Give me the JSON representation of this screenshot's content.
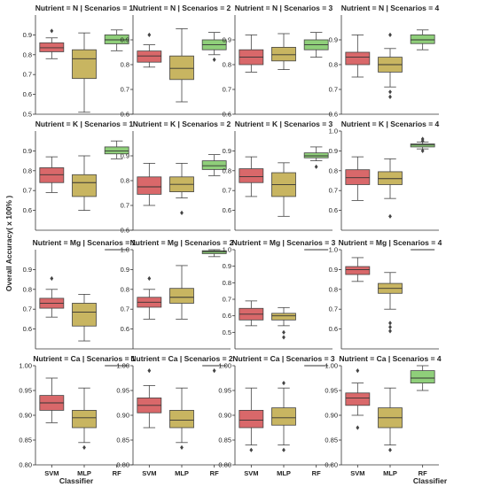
{
  "chart_data": {
    "type": "boxplot",
    "xlabel": "Classifier",
    "ylabel": "Overall Accuracy( x 100% )",
    "categories": [
      "SVM",
      "MLP",
      "RF"
    ],
    "colors": {
      "SVM": "#d9686a",
      "MLP": "#c8b561",
      "RF": "#8fcf7a"
    },
    "panels": [
      {
        "title": "Nutrient = N | Scenarios = 1",
        "ylim": [
          0.5,
          1.0
        ],
        "yticks": [
          0.5,
          0.6,
          0.7,
          0.8,
          0.9
        ],
        "boxes": [
          {
            "min": 0.78,
            "q1": 0.815,
            "median": 0.835,
            "q3": 0.86,
            "max": 0.885,
            "outliers": [
              0.92
            ]
          },
          {
            "min": 0.51,
            "q1": 0.68,
            "median": 0.78,
            "q3": 0.825,
            "max": 0.91,
            "outliers": []
          },
          {
            "min": 0.82,
            "q1": 0.855,
            "median": 0.875,
            "q3": 0.9,
            "max": 0.925,
            "outliers": []
          }
        ]
      },
      {
        "title": "Nutrient = N | Scenarios = 2",
        "ylim": [
          0.6,
          1.0
        ],
        "yticks": [
          0.6,
          0.7,
          0.8,
          0.9
        ],
        "boxes": [
          {
            "min": 0.79,
            "q1": 0.81,
            "median": 0.835,
            "q3": 0.855,
            "max": 0.88,
            "outliers": [
              0.92
            ]
          },
          {
            "min": 0.65,
            "q1": 0.74,
            "median": 0.785,
            "q3": 0.835,
            "max": 0.945,
            "outliers": []
          },
          {
            "min": 0.84,
            "q1": 0.86,
            "median": 0.88,
            "q3": 0.9,
            "max": 0.93,
            "outliers": [
              0.82
            ]
          }
        ]
      },
      {
        "title": "Nutrient = N | Scenarios = 3",
        "ylim": [
          0.6,
          1.0
        ],
        "yticks": [
          0.6,
          0.7,
          0.8,
          0.9
        ],
        "boxes": [
          {
            "min": 0.77,
            "q1": 0.8,
            "median": 0.83,
            "q3": 0.86,
            "max": 0.92,
            "outliers": []
          },
          {
            "min": 0.78,
            "q1": 0.815,
            "median": 0.84,
            "q3": 0.87,
            "max": 0.925,
            "outliers": []
          },
          {
            "min": 0.83,
            "q1": 0.86,
            "median": 0.88,
            "q3": 0.9,
            "max": 0.93,
            "outliers": []
          }
        ]
      },
      {
        "title": "Nutrient = N | Scenarios = 4",
        "ylim": [
          0.6,
          1.0
        ],
        "yticks": [
          0.6,
          0.7,
          0.8,
          0.9
        ],
        "boxes": [
          {
            "min": 0.75,
            "q1": 0.8,
            "median": 0.83,
            "q3": 0.85,
            "max": 0.92,
            "outliers": []
          },
          {
            "min": 0.71,
            "q1": 0.77,
            "median": 0.8,
            "q3": 0.83,
            "max": 0.865,
            "outliers": [
              0.92,
              0.69,
              0.67
            ]
          },
          {
            "min": 0.86,
            "q1": 0.885,
            "median": 0.9,
            "q3": 0.92,
            "max": 0.94,
            "outliers": []
          }
        ]
      },
      {
        "title": "Nutrient = K | Scenarios = 1",
        "ylim": [
          0.5,
          1.0
        ],
        "yticks": [
          0.6,
          0.7,
          0.8,
          0.9
        ],
        "boxes": [
          {
            "min": 0.69,
            "q1": 0.74,
            "median": 0.78,
            "q3": 0.815,
            "max": 0.87,
            "outliers": []
          },
          {
            "min": 0.6,
            "q1": 0.67,
            "median": 0.74,
            "q3": 0.78,
            "max": 0.875,
            "outliers": []
          },
          {
            "min": 0.86,
            "q1": 0.885,
            "median": 0.9,
            "q3": 0.92,
            "max": 0.95,
            "outliers": []
          }
        ]
      },
      {
        "title": "Nutrient = K | Scenarios = 2",
        "ylim": [
          0.6,
          1.0
        ],
        "yticks": [
          0.6,
          0.7,
          0.8,
          0.9
        ],
        "boxes": [
          {
            "min": 0.7,
            "q1": 0.745,
            "median": 0.775,
            "q3": 0.815,
            "max": 0.87,
            "outliers": []
          },
          {
            "min": 0.73,
            "q1": 0.755,
            "median": 0.785,
            "q3": 0.815,
            "max": 0.87,
            "outliers": [
              0.67
            ]
          },
          {
            "min": 0.82,
            "q1": 0.845,
            "median": 0.86,
            "q3": 0.88,
            "max": 0.905,
            "outliers": []
          }
        ]
      },
      {
        "title": "Nutrient = K | Scenarios = 3",
        "ylim": [
          0.5,
          1.0
        ],
        "yticks": [
          0.6,
          0.7,
          0.8,
          0.9
        ],
        "boxes": [
          {
            "min": 0.67,
            "q1": 0.74,
            "median": 0.77,
            "q3": 0.81,
            "max": 0.87,
            "outliers": []
          },
          {
            "min": 0.57,
            "q1": 0.67,
            "median": 0.73,
            "q3": 0.79,
            "max": 0.84,
            "outliers": []
          },
          {
            "min": 0.85,
            "q1": 0.865,
            "median": 0.875,
            "q3": 0.89,
            "max": 0.92,
            "outliers": [
              0.82
            ]
          }
        ]
      },
      {
        "title": "Nutrient = K | Scenarios = 4",
        "ylim": [
          0.5,
          1.0
        ],
        "yticks": [
          0.6,
          0.7,
          0.8,
          0.9,
          1.0
        ],
        "boxes": [
          {
            "min": 0.65,
            "q1": 0.73,
            "median": 0.765,
            "q3": 0.805,
            "max": 0.87,
            "outliers": []
          },
          {
            "min": 0.66,
            "q1": 0.73,
            "median": 0.76,
            "q3": 0.795,
            "max": 0.86,
            "outliers": [
              0.57
            ]
          },
          {
            "min": 0.91,
            "q1": 0.92,
            "median": 0.93,
            "q3": 0.935,
            "max": 0.945,
            "outliers": [
              0.96,
              0.95,
              0.9
            ]
          }
        ]
      },
      {
        "title": "Nutrient = Mg | Scenarios = 1",
        "ylim": [
          0.5,
          1.0
        ],
        "yticks": [
          0.6,
          0.7,
          0.8,
          0.9
        ],
        "boxes": [
          {
            "min": 0.66,
            "q1": 0.705,
            "median": 0.73,
            "q3": 0.755,
            "max": 0.8,
            "outliers": [
              0.855
            ]
          },
          {
            "min": 0.54,
            "q1": 0.615,
            "median": 0.685,
            "q3": 0.73,
            "max": 0.775,
            "outliers": []
          },
          {
            "min": 1.0,
            "q1": 1.0,
            "median": 1.0,
            "q3": 1.0,
            "max": 1.0,
            "outliers": []
          }
        ]
      },
      {
        "title": "Nutrient = Mg | Scenarios = 2",
        "ylim": [
          0.5,
          1.0
        ],
        "yticks": [
          0.6,
          0.7,
          0.8,
          0.9,
          1.0
        ],
        "boxes": [
          {
            "min": 0.65,
            "q1": 0.71,
            "median": 0.735,
            "q3": 0.76,
            "max": 0.8,
            "outliers": [
              0.855
            ]
          },
          {
            "min": 0.65,
            "q1": 0.73,
            "median": 0.76,
            "q3": 0.805,
            "max": 0.92,
            "outliers": []
          },
          {
            "min": 0.965,
            "q1": 0.98,
            "median": 0.99,
            "q3": 0.995,
            "max": 1.0,
            "outliers": []
          }
        ]
      },
      {
        "title": "Nutrient = Mg | Scenarios = 3",
        "ylim": [
          0.4,
          1.0
        ],
        "yticks": [
          0.5,
          0.6,
          0.7,
          0.8,
          0.9,
          1.0
        ],
        "boxes": [
          {
            "min": 0.54,
            "q1": 0.575,
            "median": 0.61,
            "q3": 0.645,
            "max": 0.69,
            "outliers": []
          },
          {
            "min": 0.54,
            "q1": 0.575,
            "median": 0.6,
            "q3": 0.615,
            "max": 0.65,
            "outliers": [
              0.5,
              0.47
            ]
          },
          {
            "min": 1.0,
            "q1": 1.0,
            "median": 1.0,
            "q3": 1.0,
            "max": 1.0,
            "outliers": []
          }
        ]
      },
      {
        "title": "Nutrient = Mg | Scenarios = 4",
        "ylim": [
          0.5,
          1.0
        ],
        "yticks": [
          0.6,
          0.7,
          0.8,
          0.9,
          1.0
        ],
        "boxes": [
          {
            "min": 0.84,
            "q1": 0.875,
            "median": 0.9,
            "q3": 0.915,
            "max": 0.96,
            "outliers": []
          },
          {
            "min": 0.7,
            "q1": 0.78,
            "median": 0.805,
            "q3": 0.83,
            "max": 0.885,
            "outliers": [
              0.63,
              0.61,
              0.59
            ]
          },
          {
            "min": 1.0,
            "q1": 1.0,
            "median": 1.0,
            "q3": 1.0,
            "max": 1.0,
            "outliers": []
          }
        ]
      },
      {
        "title": "Nutrient = Ca | Scenarios = 1",
        "ylim": [
          0.8,
          1.0
        ],
        "yticks": [
          0.8,
          0.85,
          0.9,
          0.95,
          1.0
        ],
        "boxes": [
          {
            "min": 0.885,
            "q1": 0.91,
            "median": 0.925,
            "q3": 0.94,
            "max": 0.975,
            "outliers": []
          },
          {
            "min": 0.845,
            "q1": 0.875,
            "median": 0.895,
            "q3": 0.91,
            "max": 0.955,
            "outliers": [
              0.835
            ]
          },
          {
            "min": 1.0,
            "q1": 1.0,
            "median": 1.0,
            "q3": 1.0,
            "max": 1.0,
            "outliers": []
          }
        ]
      },
      {
        "title": "Nutrient = Ca | Scenarios = 2",
        "ylim": [
          0.8,
          1.0
        ],
        "yticks": [
          0.8,
          0.85,
          0.9,
          0.95,
          1.0
        ],
        "boxes": [
          {
            "min": 0.875,
            "q1": 0.905,
            "median": 0.92,
            "q3": 0.935,
            "max": 0.96,
            "outliers": [
              0.99
            ]
          },
          {
            "min": 0.845,
            "q1": 0.875,
            "median": 0.89,
            "q3": 0.91,
            "max": 0.955,
            "outliers": [
              0.835
            ]
          },
          {
            "min": 1.0,
            "q1": 1.0,
            "median": 1.0,
            "q3": 1.0,
            "max": 1.0,
            "outliers": [
              0.99
            ]
          }
        ]
      },
      {
        "title": "Nutrient = Ca | Scenarios = 3",
        "ylim": [
          0.8,
          1.0
        ],
        "yticks": [
          0.8,
          0.85,
          0.9,
          0.95,
          1.0
        ],
        "boxes": [
          {
            "min": 0.84,
            "q1": 0.875,
            "median": 0.89,
            "q3": 0.91,
            "max": 0.955,
            "outliers": [
              0.83
            ]
          },
          {
            "min": 0.84,
            "q1": 0.88,
            "median": 0.895,
            "q3": 0.915,
            "max": 0.955,
            "outliers": [
              0.965,
              0.83
            ]
          },
          {
            "min": 1.0,
            "q1": 1.0,
            "median": 1.0,
            "q3": 1.0,
            "max": 1.0,
            "outliers": []
          }
        ]
      },
      {
        "title": "Nutrient = Ca | Scenarios = 4",
        "ylim": [
          0.8,
          1.0
        ],
        "yticks": [
          0.8,
          0.85,
          0.9,
          0.95,
          1.0
        ],
        "boxes": [
          {
            "min": 0.9,
            "q1": 0.92,
            "median": 0.935,
            "q3": 0.945,
            "max": 0.965,
            "outliers": [
              0.99,
              0.875
            ]
          },
          {
            "min": 0.84,
            "q1": 0.875,
            "median": 0.895,
            "q3": 0.915,
            "max": 0.955,
            "outliers": [
              0.83
            ]
          },
          {
            "min": 0.95,
            "q1": 0.965,
            "median": 0.975,
            "q3": 0.99,
            "max": 1.0,
            "outliers": []
          }
        ]
      }
    ]
  }
}
